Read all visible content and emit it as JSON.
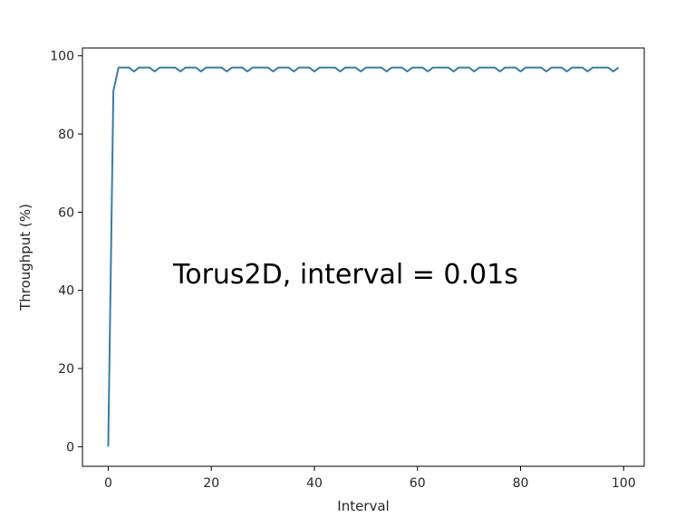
{
  "chart_data": {
    "type": "line",
    "xlabel": "Interval",
    "ylabel": "Throughput (%)",
    "annotation": "Torus2D, interval = 0.01s",
    "xlim": [
      -5,
      104
    ],
    "ylim": [
      -5,
      102
    ],
    "xticks": [
      0,
      20,
      40,
      60,
      80,
      100
    ],
    "yticks": [
      0,
      20,
      40,
      60,
      80,
      100
    ],
    "grid": false,
    "line_color": "#3a7ca5",
    "series": [
      {
        "x": [
          0,
          1,
          2,
          3,
          4,
          5,
          6,
          7,
          8,
          9,
          10,
          11,
          12,
          13,
          14,
          15,
          16,
          17,
          18,
          19,
          20,
          21,
          22,
          23,
          24,
          25,
          26,
          27,
          28,
          29,
          30,
          31,
          32,
          33,
          34,
          35,
          36,
          37,
          38,
          39,
          40,
          41,
          42,
          43,
          44,
          45,
          46,
          47,
          48,
          49,
          50,
          51,
          52,
          53,
          54,
          55,
          56,
          57,
          58,
          59,
          60,
          61,
          62,
          63,
          64,
          65,
          66,
          67,
          68,
          69,
          70,
          71,
          72,
          73,
          74,
          75,
          76,
          77,
          78,
          79,
          80,
          81,
          82,
          83,
          84,
          85,
          86,
          87,
          88,
          89,
          90,
          91,
          92,
          93,
          94,
          95,
          96,
          97,
          98,
          99
        ],
        "values": [
          0,
          91,
          97,
          97,
          97,
          96,
          97,
          97,
          97,
          96,
          97,
          97,
          97,
          97,
          96,
          97,
          97,
          97,
          96,
          97,
          97,
          97,
          97,
          96,
          97,
          97,
          97,
          96,
          97,
          97,
          97,
          97,
          96,
          97,
          97,
          97,
          96,
          97,
          97,
          97,
          96,
          97,
          97,
          97,
          97,
          96,
          97,
          97,
          97,
          96,
          97,
          97,
          97,
          97,
          96,
          97,
          97,
          97,
          96,
          97,
          97,
          97,
          96,
          97,
          97,
          97,
          97,
          96,
          97,
          97,
          97,
          96,
          97,
          97,
          97,
          97,
          96,
          97,
          97,
          97,
          96,
          97,
          97,
          97,
          97,
          96,
          97,
          97,
          97,
          96,
          97,
          97,
          97,
          96,
          97,
          97,
          97,
          97,
          96,
          97
        ]
      }
    ]
  }
}
